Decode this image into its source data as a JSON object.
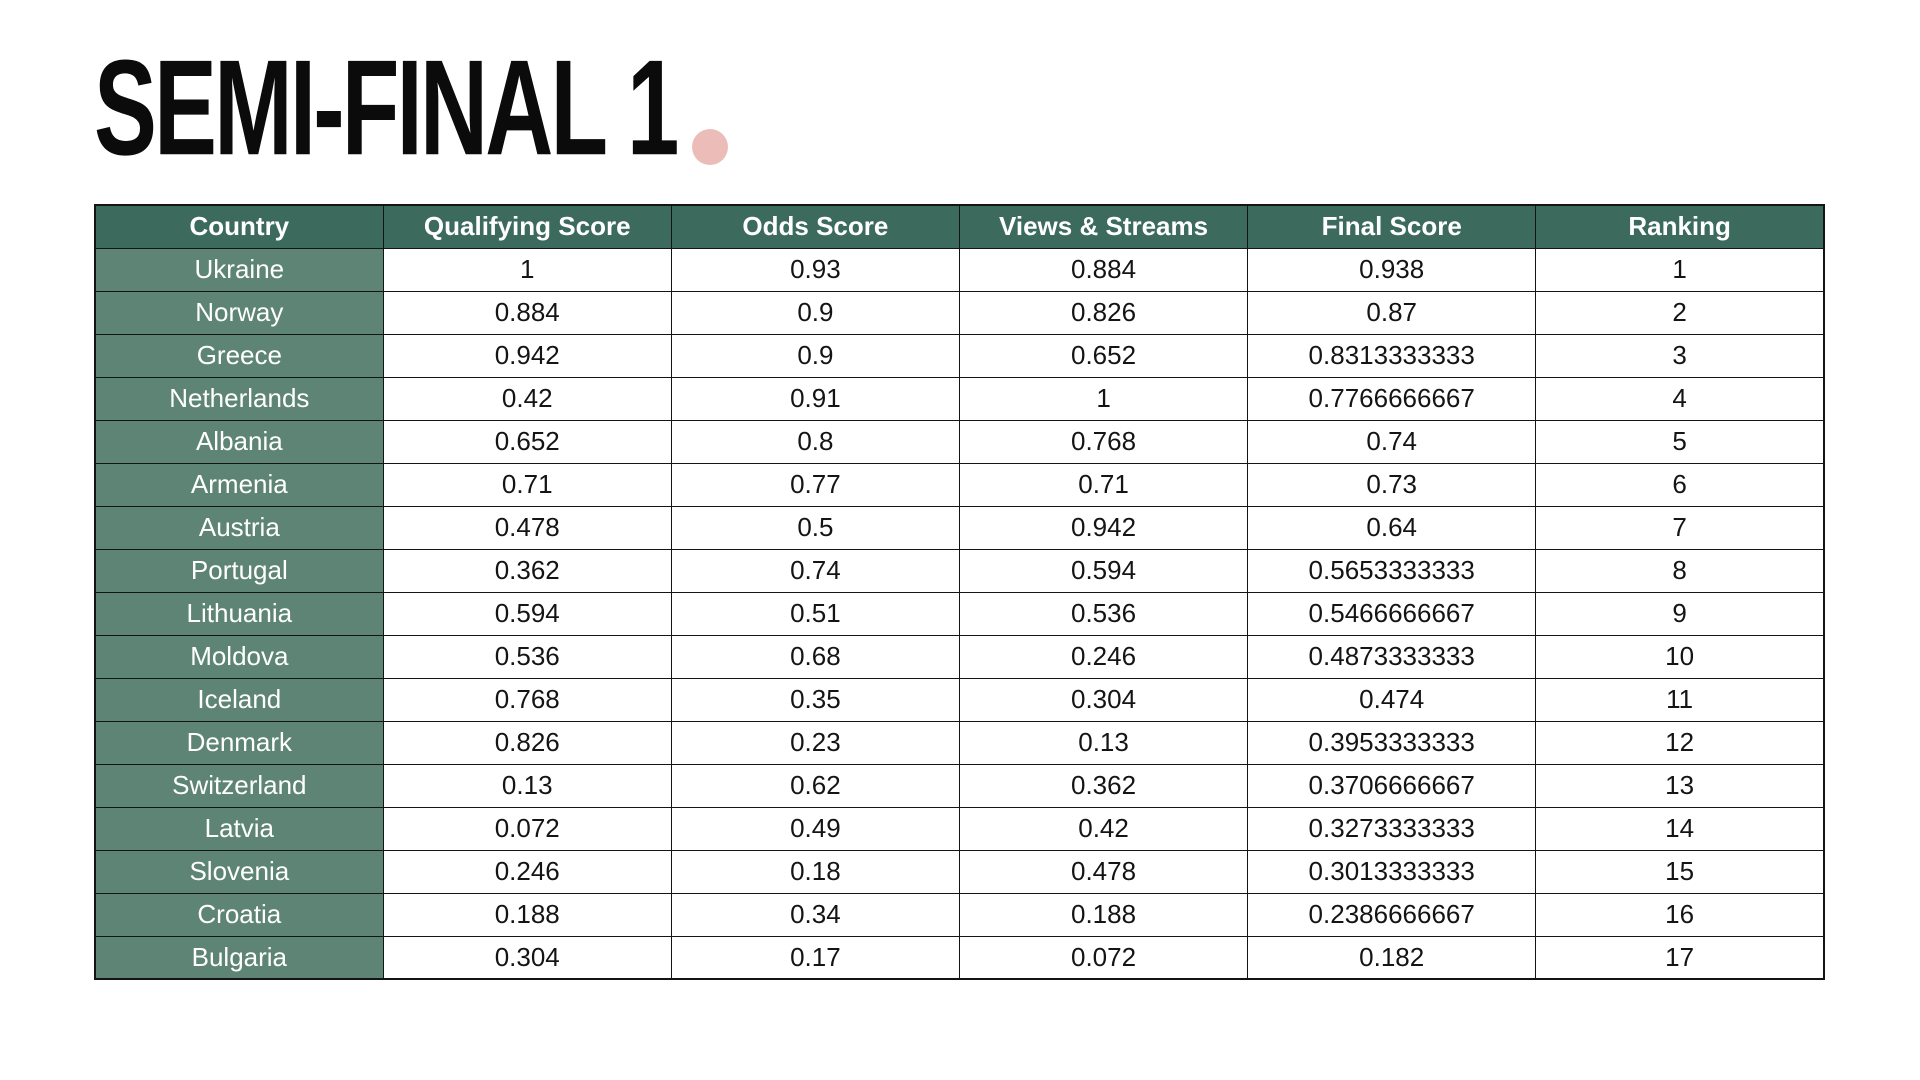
{
  "header": {
    "title": "SEMI-FINAL 1"
  },
  "colors": {
    "header_bg": "#3c6a5c",
    "country_bg": "#5d8475",
    "accent_dot": "#ecbdb8",
    "grid_line": "#141414",
    "header_text": "#ffffff",
    "body_text": "#141414",
    "title_text": "#0b0b0b"
  },
  "chart_data": {
    "type": "table",
    "title": "SEMI-FINAL 1",
    "columns": [
      "Country",
      "Qualifying Score",
      "Odds Score",
      "Views & Streams",
      "Final Score",
      "Ranking"
    ],
    "rows": [
      [
        "Ukraine",
        "1",
        "0.93",
        "0.884",
        "0.938",
        "1"
      ],
      [
        "Norway",
        "0.884",
        "0.9",
        "0.826",
        "0.87",
        "2"
      ],
      [
        "Greece",
        "0.942",
        "0.9",
        "0.652",
        "0.8313333333",
        "3"
      ],
      [
        "Netherlands",
        "0.42",
        "0.91",
        "1",
        "0.7766666667",
        "4"
      ],
      [
        "Albania",
        "0.652",
        "0.8",
        "0.768",
        "0.74",
        "5"
      ],
      [
        "Armenia",
        "0.71",
        "0.77",
        "0.71",
        "0.73",
        "6"
      ],
      [
        "Austria",
        "0.478",
        "0.5",
        "0.942",
        "0.64",
        "7"
      ],
      [
        "Portugal",
        "0.362",
        "0.74",
        "0.594",
        "0.5653333333",
        "8"
      ],
      [
        "Lithuania",
        "0.594",
        "0.51",
        "0.536",
        "0.5466666667",
        "9"
      ],
      [
        "Moldova",
        "0.536",
        "0.68",
        "0.246",
        "0.4873333333",
        "10"
      ],
      [
        "Iceland",
        "0.768",
        "0.35",
        "0.304",
        "0.474",
        "11"
      ],
      [
        "Denmark",
        "0.826",
        "0.23",
        "0.13",
        "0.3953333333",
        "12"
      ],
      [
        "Switzerland",
        "0.13",
        "0.62",
        "0.362",
        "0.3706666667",
        "13"
      ],
      [
        "Latvia",
        "0.072",
        "0.49",
        "0.42",
        "0.3273333333",
        "14"
      ],
      [
        "Slovenia",
        "0.246",
        "0.18",
        "0.478",
        "0.3013333333",
        "15"
      ],
      [
        "Croatia",
        "0.188",
        "0.34",
        "0.188",
        "0.2386666667",
        "16"
      ],
      [
        "Bulgaria",
        "0.304",
        "0.17",
        "0.072",
        "0.182",
        "17"
      ]
    ],
    "cell_names": [
      "country-cell",
      "qualifying-score-cell",
      "odds-score-cell",
      "views-streams-cell",
      "final-score-cell",
      "ranking-cell"
    ],
    "layout": {
      "grid": "on",
      "header_row": true,
      "row_header_column": true
    }
  }
}
